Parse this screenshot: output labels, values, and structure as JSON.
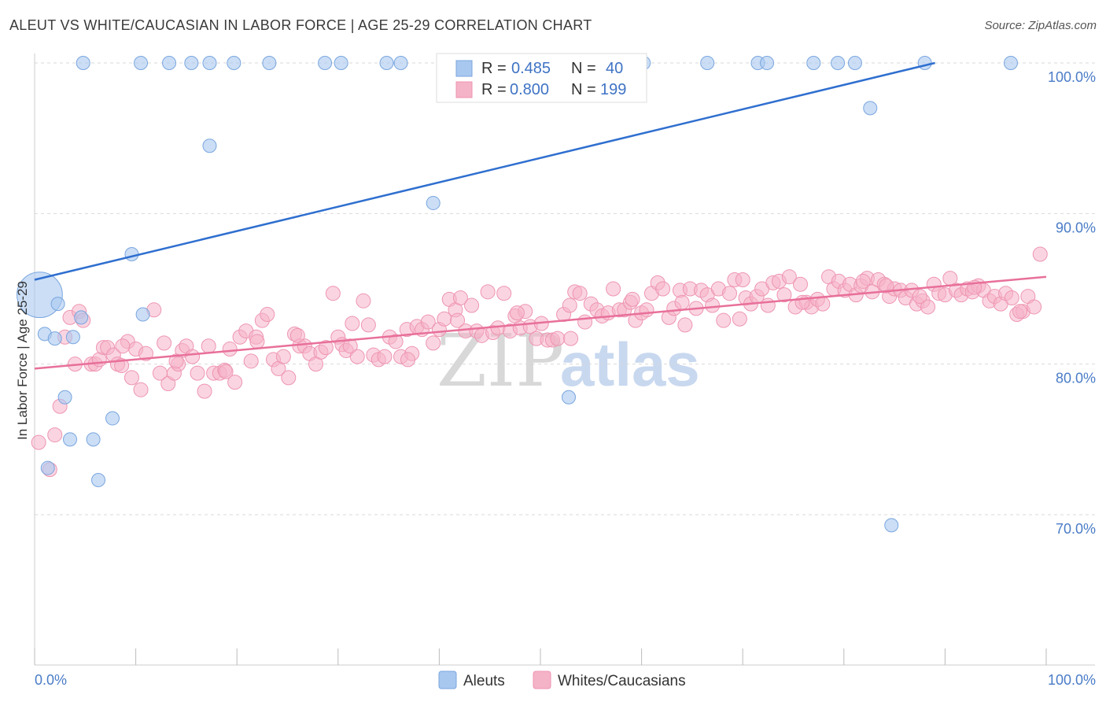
{
  "title": "ALEUT VS WHITE/CAUCASIAN IN LABOR FORCE | AGE 25-29 CORRELATION CHART",
  "source": "Source: ZipAtlas.com",
  "watermark": {
    "zip": "ZIP",
    "atlas": "atlas"
  },
  "colors": {
    "blue_fill": "#a9c8f0",
    "blue_stroke": "#7aa6de",
    "blue_line": "#2f6fcf",
    "pink_fill": "#f5b3c8",
    "pink_stroke": "#ee95b1",
    "pink_line": "#e8709a",
    "tick_text": "#4a7cc7",
    "grid": "#d9d9d9"
  },
  "legend": {
    "r_label": "R =",
    "n_label": "N =",
    "items": [
      {
        "r": "0.485",
        "n": "40"
      },
      {
        "r": "0.800",
        "n": "199"
      }
    ]
  },
  "bottom_legend": [
    "Aleuts",
    "Whites/Caucasians"
  ],
  "chart_data": {
    "type": "scatter",
    "xlabel": "",
    "ylabel": "In Labor Force | Age 25-29",
    "xlim": [
      0,
      100
    ],
    "ylim": [
      60,
      102
    ],
    "x_tick_labels": [
      {
        "v": 0,
        "label": "0.0%"
      },
      {
        "v": 100,
        "label": "100.0%"
      }
    ],
    "y_tick_labels": [
      {
        "v": 100,
        "label": "100.0%"
      },
      {
        "v": 90,
        "label": "90.0%"
      },
      {
        "v": 80,
        "label": "80.0%"
      },
      {
        "v": 70,
        "label": "70.0%"
      }
    ],
    "grid": true,
    "series": [
      {
        "name": "Aleuts",
        "trend": [
          [
            0,
            85.6
          ],
          [
            89,
            100
          ]
        ],
        "points": [
          [
            0.5,
            84.6,
            3.4
          ],
          [
            2.3,
            84.0,
            1
          ],
          [
            1.0,
            82.0,
            1
          ],
          [
            2.0,
            81.7,
            1
          ],
          [
            3.8,
            81.8,
            1
          ],
          [
            4.6,
            83.1,
            1
          ],
          [
            4.8,
            100,
            1
          ],
          [
            10.5,
            100,
            1
          ],
          [
            13.3,
            100,
            1
          ],
          [
            15.5,
            100,
            1
          ],
          [
            17.3,
            100,
            1
          ],
          [
            19.7,
            100,
            1
          ],
          [
            23.2,
            100,
            1
          ],
          [
            28.7,
            100,
            1
          ],
          [
            30.3,
            100,
            1
          ],
          [
            34.8,
            100,
            1
          ],
          [
            36.2,
            100,
            1
          ],
          [
            42.7,
            100,
            1
          ],
          [
            44.2,
            100,
            1
          ],
          [
            48.3,
            100,
            1
          ],
          [
            49.3,
            100,
            1
          ],
          [
            59.5,
            100,
            1
          ],
          [
            60.2,
            100,
            1
          ],
          [
            66.5,
            100,
            1
          ],
          [
            71.5,
            100,
            1
          ],
          [
            72.4,
            100,
            1
          ],
          [
            77.0,
            100,
            1
          ],
          [
            79.4,
            100,
            1
          ],
          [
            81.1,
            100,
            1
          ],
          [
            96.5,
            100,
            1
          ],
          [
            17.3,
            94.5,
            1
          ],
          [
            39.4,
            90.7,
            1
          ],
          [
            9.6,
            87.3,
            1
          ],
          [
            10.7,
            83.3,
            1
          ],
          [
            3.0,
            77.8,
            1
          ],
          [
            7.7,
            76.4,
            1
          ],
          [
            3.5,
            75.0,
            1
          ],
          [
            5.8,
            75.0,
            1
          ],
          [
            1.3,
            73.1,
            1
          ],
          [
            6.3,
            72.3,
            1
          ],
          [
            52.8,
            77.8,
            1
          ],
          [
            82.6,
            97.0,
            1
          ],
          [
            84.7,
            69.3,
            1
          ],
          [
            88.0,
            100,
            1
          ]
        ]
      },
      {
        "name": "Whites/Caucasians",
        "trend": [
          [
            0,
            79.7
          ],
          [
            100,
            85.8
          ]
        ],
        "points": [
          [
            0.4,
            74.8
          ],
          [
            1.5,
            73.0
          ],
          [
            2.0,
            75.3
          ],
          [
            2.5,
            77.2
          ],
          [
            3.0,
            81.8
          ],
          [
            3.5,
            83.1
          ],
          [
            4.0,
            80.0
          ],
          [
            4.4,
            83.5
          ],
          [
            4.8,
            82.9
          ],
          [
            5.6,
            80.0
          ],
          [
            6.0,
            80.0
          ],
          [
            6.4,
            80.3
          ],
          [
            6.8,
            81.1
          ],
          [
            7.2,
            81.1
          ],
          [
            7.8,
            80.6
          ],
          [
            8.2,
            80.0
          ],
          [
            8.6,
            79.9
          ],
          [
            9.2,
            81.5
          ],
          [
            9.6,
            79.1
          ],
          [
            10.0,
            81.0
          ],
          [
            10.5,
            78.3
          ],
          [
            11.0,
            80.7
          ],
          [
            11.8,
            83.6
          ],
          [
            12.4,
            79.4
          ],
          [
            12.8,
            81.4
          ],
          [
            13.2,
            78.7
          ],
          [
            13.8,
            79.4
          ],
          [
            14.2,
            80.0
          ],
          [
            14.6,
            80.9
          ],
          [
            15.0,
            81.2
          ],
          [
            15.6,
            80.5
          ],
          [
            16.1,
            79.4
          ],
          [
            16.8,
            78.2
          ],
          [
            17.2,
            81.2
          ],
          [
            17.7,
            79.4
          ],
          [
            18.3,
            79.4
          ],
          [
            18.8,
            79.6
          ],
          [
            19.3,
            81.0
          ],
          [
            19.8,
            78.8
          ],
          [
            20.3,
            81.8
          ],
          [
            20.9,
            82.2
          ],
          [
            21.4,
            80.2
          ],
          [
            21.9,
            81.8
          ],
          [
            22.5,
            82.9
          ],
          [
            23.0,
            83.3
          ],
          [
            23.6,
            80.3
          ],
          [
            24.1,
            79.7
          ],
          [
            24.6,
            80.5
          ],
          [
            25.1,
            79.1
          ],
          [
            25.7,
            82.0
          ],
          [
            26.2,
            81.2
          ],
          [
            26.7,
            81.2
          ],
          [
            27.2,
            80.7
          ],
          [
            27.8,
            80.0
          ],
          [
            28.3,
            80.8
          ],
          [
            28.8,
            81.1
          ],
          [
            29.5,
            84.7
          ],
          [
            30.0,
            81.8
          ],
          [
            30.4,
            81.3
          ],
          [
            30.8,
            80.9
          ],
          [
            31.4,
            82.7
          ],
          [
            31.9,
            80.5
          ],
          [
            32.5,
            84.2
          ],
          [
            33.0,
            82.6
          ],
          [
            33.5,
            80.6
          ],
          [
            34.0,
            80.3
          ],
          [
            34.6,
            80.5
          ],
          [
            35.1,
            81.8
          ],
          [
            35.7,
            81.5
          ],
          [
            36.2,
            80.5
          ],
          [
            36.8,
            82.3
          ],
          [
            37.3,
            80.7
          ],
          [
            37.8,
            82.5
          ],
          [
            38.3,
            82.3
          ],
          [
            38.9,
            82.8
          ],
          [
            39.4,
            81.4
          ],
          [
            40.0,
            82.3
          ],
          [
            40.5,
            83.0
          ],
          [
            41.0,
            84.3
          ],
          [
            41.6,
            83.6
          ],
          [
            42.1,
            84.4
          ],
          [
            42.6,
            82.2
          ],
          [
            43.2,
            83.9
          ],
          [
            43.7,
            82.2
          ],
          [
            44.2,
            81.9
          ],
          [
            44.8,
            84.8
          ],
          [
            45.3,
            82.1
          ],
          [
            45.8,
            82.4
          ],
          [
            46.4,
            84.7
          ],
          [
            47.0,
            82.2
          ],
          [
            47.5,
            83.2
          ],
          [
            48.0,
            82.4
          ],
          [
            48.5,
            83.5
          ],
          [
            49.0,
            82.5
          ],
          [
            49.6,
            81.7
          ],
          [
            50.1,
            82.7
          ],
          [
            50.7,
            81.6
          ],
          [
            51.2,
            81.6
          ],
          [
            51.7,
            81.7
          ],
          [
            52.3,
            83.3
          ],
          [
            52.9,
            83.9
          ],
          [
            53.4,
            84.8
          ],
          [
            53.9,
            84.7
          ],
          [
            54.4,
            82.8
          ],
          [
            55.0,
            84.0
          ],
          [
            55.6,
            83.6
          ],
          [
            56.1,
            83.2
          ],
          [
            56.7,
            83.4
          ],
          [
            57.2,
            85.0
          ],
          [
            57.8,
            83.6
          ],
          [
            58.3,
            83.6
          ],
          [
            58.9,
            84.1
          ],
          [
            59.4,
            82.9
          ],
          [
            60.0,
            83.4
          ],
          [
            60.5,
            83.6
          ],
          [
            61.0,
            84.7
          ],
          [
            61.6,
            85.4
          ],
          [
            62.1,
            85.0
          ],
          [
            62.7,
            83.1
          ],
          [
            63.2,
            83.7
          ],
          [
            63.8,
            84.9
          ],
          [
            64.3,
            82.6
          ],
          [
            64.8,
            85.0
          ],
          [
            65.4,
            83.7
          ],
          [
            65.9,
            84.9
          ],
          [
            66.5,
            84.6
          ],
          [
            67.0,
            83.9
          ],
          [
            67.6,
            85.0
          ],
          [
            68.1,
            82.9
          ],
          [
            68.7,
            84.7
          ],
          [
            69.2,
            85.6
          ],
          [
            69.7,
            83.0
          ],
          [
            70.3,
            84.4
          ],
          [
            70.8,
            84.0
          ],
          [
            71.4,
            84.5
          ],
          [
            71.9,
            85.0
          ],
          [
            72.5,
            83.9
          ],
          [
            73.0,
            85.4
          ],
          [
            73.6,
            85.5
          ],
          [
            74.1,
            84.6
          ],
          [
            74.6,
            85.8
          ],
          [
            75.2,
            83.8
          ],
          [
            75.7,
            85.3
          ],
          [
            76.3,
            84.1
          ],
          [
            76.8,
            83.8
          ],
          [
            77.4,
            84.3
          ],
          [
            77.9,
            84.0
          ],
          [
            78.5,
            85.8
          ],
          [
            79.0,
            85.0
          ],
          [
            79.5,
            85.5
          ],
          [
            80.1,
            84.9
          ],
          [
            80.6,
            85.3
          ],
          [
            81.2,
            84.6
          ],
          [
            81.7,
            85.2
          ],
          [
            82.3,
            85.7
          ],
          [
            82.8,
            84.8
          ],
          [
            83.4,
            85.6
          ],
          [
            84.0,
            85.3
          ],
          [
            84.5,
            84.5
          ],
          [
            85.0,
            85.0
          ],
          [
            85.6,
            84.9
          ],
          [
            86.1,
            84.4
          ],
          [
            86.7,
            84.9
          ],
          [
            87.2,
            84.0
          ],
          [
            87.8,
            84.2
          ],
          [
            88.3,
            83.8
          ],
          [
            88.9,
            85.3
          ],
          [
            89.4,
            84.7
          ],
          [
            90.0,
            84.6
          ],
          [
            90.5,
            85.7
          ],
          [
            91.1,
            84.9
          ],
          [
            91.6,
            84.6
          ],
          [
            92.2,
            85.0
          ],
          [
            92.7,
            84.8
          ],
          [
            93.3,
            85.2
          ],
          [
            93.8,
            84.9
          ],
          [
            94.4,
            84.2
          ],
          [
            94.9,
            84.5
          ],
          [
            95.5,
            84.0
          ],
          [
            96.0,
            84.7
          ],
          [
            96.6,
            84.4
          ],
          [
            97.1,
            83.3
          ],
          [
            97.7,
            83.5
          ],
          [
            98.2,
            84.5
          ],
          [
            98.8,
            83.8
          ],
          [
            99.4,
            87.3
          ],
          [
            8.7,
            81.2
          ],
          [
            14.0,
            80.2
          ],
          [
            22.0,
            81.5
          ],
          [
            26.0,
            81.9
          ],
          [
            31.2,
            81.2
          ],
          [
            36.9,
            80.3
          ],
          [
            41.8,
            82.9
          ],
          [
            47.7,
            83.4
          ],
          [
            53.0,
            81.7
          ],
          [
            59.1,
            84.3
          ],
          [
            64.0,
            84.1
          ],
          [
            70.0,
            85.6
          ],
          [
            75.9,
            84.1
          ],
          [
            81.9,
            85.5
          ],
          [
            87.5,
            84.5
          ],
          [
            92.9,
            85.1
          ],
          [
            97.4,
            83.5
          ],
          [
            84.2,
            85.2
          ],
          [
            18.9,
            79.5
          ]
        ]
      }
    ]
  }
}
